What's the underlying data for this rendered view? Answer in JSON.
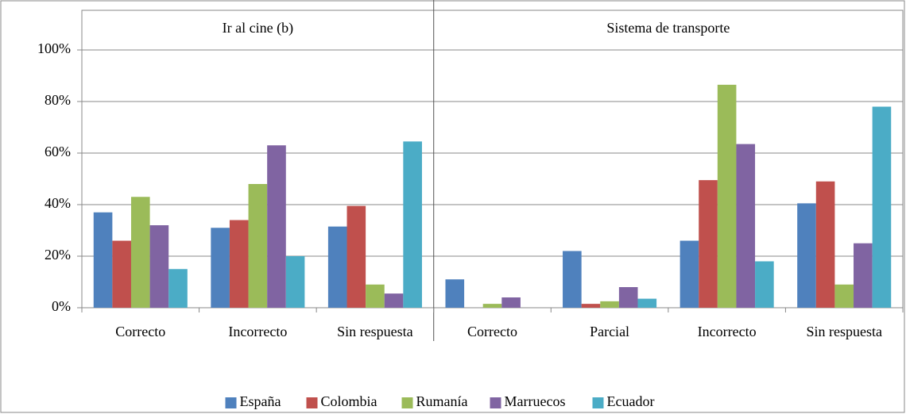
{
  "chart_data": {
    "type": "bar",
    "panels": [
      {
        "title": "Ir al cine (b)",
        "categories": [
          "Correcto",
          "Incorrecto",
          "Sin respuesta"
        ]
      },
      {
        "title": "Sistema de transporte",
        "categories": [
          "Correcto",
          "Parcial",
          "Incorrecto",
          "Sin respuesta"
        ]
      }
    ],
    "series": [
      {
        "name": "España",
        "color": "#4f81bd",
        "values": [
          37,
          31,
          31.5,
          11,
          22,
          26,
          40.5
        ]
      },
      {
        "name": "Colombia",
        "color": "#c0504d",
        "values": [
          26,
          34,
          39.5,
          0,
          1.5,
          49.5,
          49
        ]
      },
      {
        "name": "Rumanía",
        "color": "#9bbb59",
        "values": [
          43,
          48,
          9,
          1.5,
          2.5,
          86.5,
          9
        ]
      },
      {
        "name": "Marruecos",
        "color": "#8064a2",
        "values": [
          32,
          63,
          5.5,
          4,
          8,
          63.5,
          25
        ]
      },
      {
        "name": "Ecuador",
        "color": "#4bacc6",
        "values": [
          15,
          20,
          64.5,
          0,
          3.5,
          18,
          78
        ]
      }
    ],
    "ylim": [
      0,
      100
    ],
    "yticks": [
      {
        "value": 0,
        "label": "0%"
      },
      {
        "value": 20,
        "label": "20%"
      },
      {
        "value": 40,
        "label": "40%"
      },
      {
        "value": 60,
        "label": "60%"
      },
      {
        "value": 80,
        "label": "80%"
      },
      {
        "value": 100,
        "label": "100%"
      }
    ],
    "grid": true,
    "legend": "bottom"
  }
}
